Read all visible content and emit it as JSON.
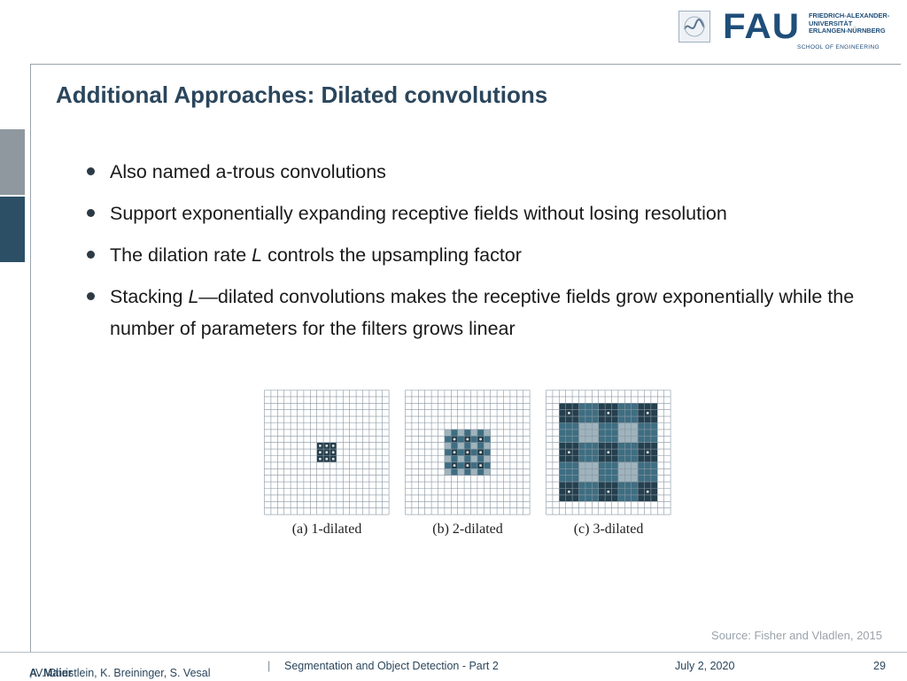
{
  "logo": {
    "brand": "FAU",
    "university_lines": [
      "FRIEDRICH-ALEXANDER-",
      "UNIVERSITÄT",
      "ERLANGEN-NÜRNBERG"
    ],
    "school": "SCHOOL OF ENGINEERING"
  },
  "slide": {
    "title": "Additional Approaches: Dilated convolutions",
    "bullets": {
      "b1": "Also named a-trous convolutions",
      "b2": "Support exponentially expanding receptive fields without losing resolution",
      "b3_pre": "The dilation rate ",
      "b3_em": "L",
      "b3_post": " controls the upsampling factor",
      "b4_pre": "Stacking ",
      "b4_em": "L",
      "b4_post": "—dilated convolutions makes the receptive fields grow exponentially while the number of parameters for the filters grows linear"
    },
    "figure": {
      "captions": [
        "(a) 1-dilated",
        "(b) 2-dilated",
        "(c) 3-dilated"
      ],
      "colors": {
        "field": "#3e6e82",
        "outer": "#9fb3bc",
        "kernel": "#243f4e",
        "dot": "#d9dee0"
      }
    },
    "source": "Source: Fisher and Vladlen, 2015"
  },
  "footer": {
    "lead_author": "A. Maier",
    "other_authors": ", V. Christlein, K. Breininger, S. Vesal",
    "separator": "|",
    "talk": "Segmentation and Object Detection - Part 2",
    "date": "July 2, 2020",
    "page": "29"
  }
}
